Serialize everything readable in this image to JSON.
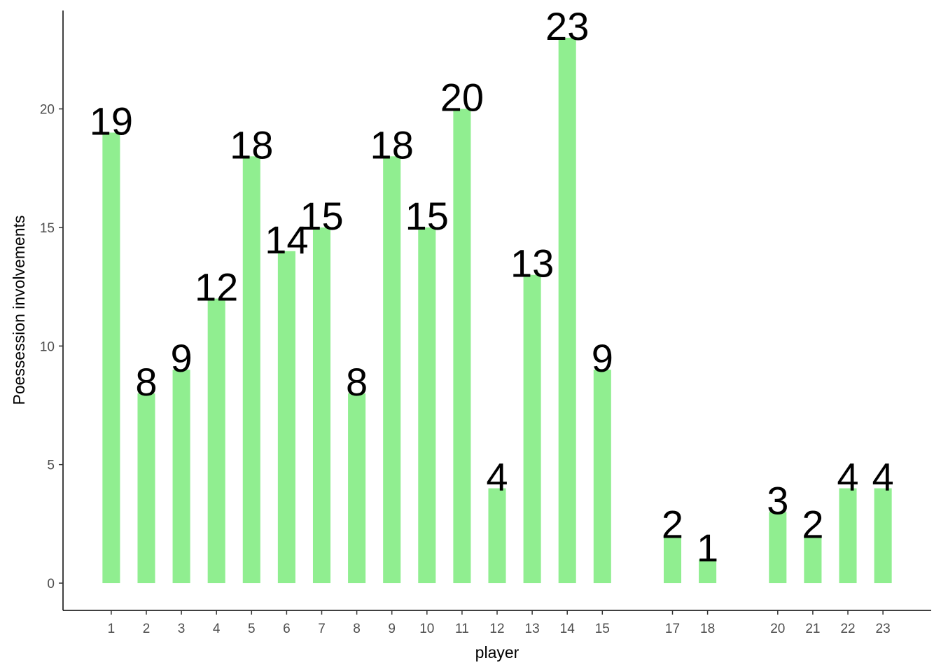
{
  "chart_data": {
    "type": "bar",
    "x": [
      1,
      2,
      3,
      4,
      5,
      6,
      7,
      8,
      9,
      10,
      11,
      12,
      13,
      14,
      15,
      17,
      18,
      20,
      21,
      22,
      23
    ],
    "values": [
      19,
      8,
      9,
      12,
      18,
      14,
      15,
      8,
      18,
      15,
      20,
      4,
      13,
      23,
      9,
      2,
      1,
      3,
      2,
      4,
      4
    ],
    "color": "#90ee90",
    "xlabel": "player",
    "ylabel": "Poessession involvements",
    "xlim": [
      -0.375,
      24.375
    ],
    "xticks": [
      1,
      2,
      3,
      4,
      5,
      6,
      7,
      8,
      9,
      10,
      11,
      12,
      13,
      14,
      15,
      17,
      18,
      20,
      21,
      22,
      23
    ],
    "ylim": [
      -1.15,
      24.15
    ],
    "yticks": [
      0,
      5,
      10,
      15,
      20
    ],
    "grid": false
  }
}
